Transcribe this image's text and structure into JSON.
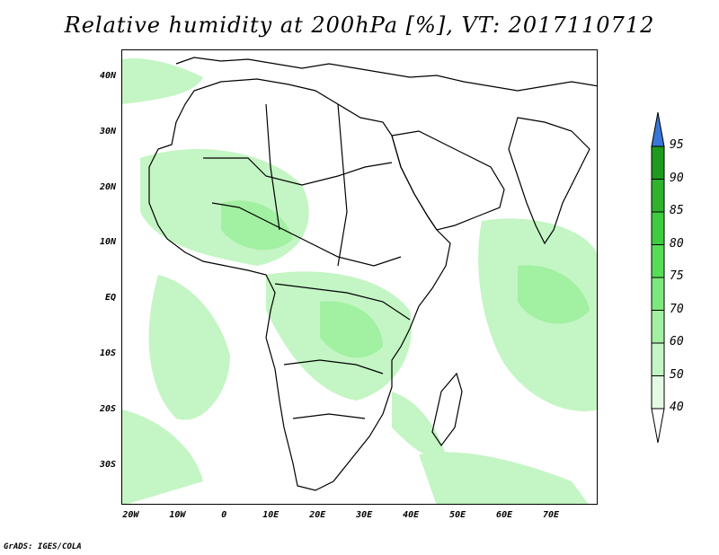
{
  "title": "Relative humidity at 200hPa [%], VT: 2017110712",
  "credit": "GrADS: IGES/COLA",
  "map": {
    "lon_range": [
      -22,
      80
    ],
    "lat_range": [
      -37,
      45
    ],
    "lat_ticks": [
      "40N",
      "30N",
      "20N",
      "10N",
      "EQ",
      "10S",
      "20S",
      "30S"
    ],
    "lat_values": [
      40,
      30,
      20,
      10,
      0,
      -10,
      -20,
      -30
    ],
    "lon_ticks": [
      "20W",
      "10W",
      "0",
      "10E",
      "20E",
      "30E",
      "40E",
      "50E",
      "60E",
      "70E"
    ],
    "lon_values": [
      -20,
      -10,
      0,
      10,
      20,
      30,
      40,
      50,
      60,
      70
    ]
  },
  "colorbar": {
    "levels": [
      "95",
      "90",
      "85",
      "80",
      "75",
      "70",
      "60",
      "50",
      "40"
    ],
    "colors": [
      "#1e9b1e",
      "#2fb32f",
      "#3fcb3f",
      "#56dd56",
      "#7ce87c",
      "#a2f0a2",
      "#c4f5c4",
      "#e2fbe2"
    ],
    "overflow_color": "#3a76d8"
  }
}
